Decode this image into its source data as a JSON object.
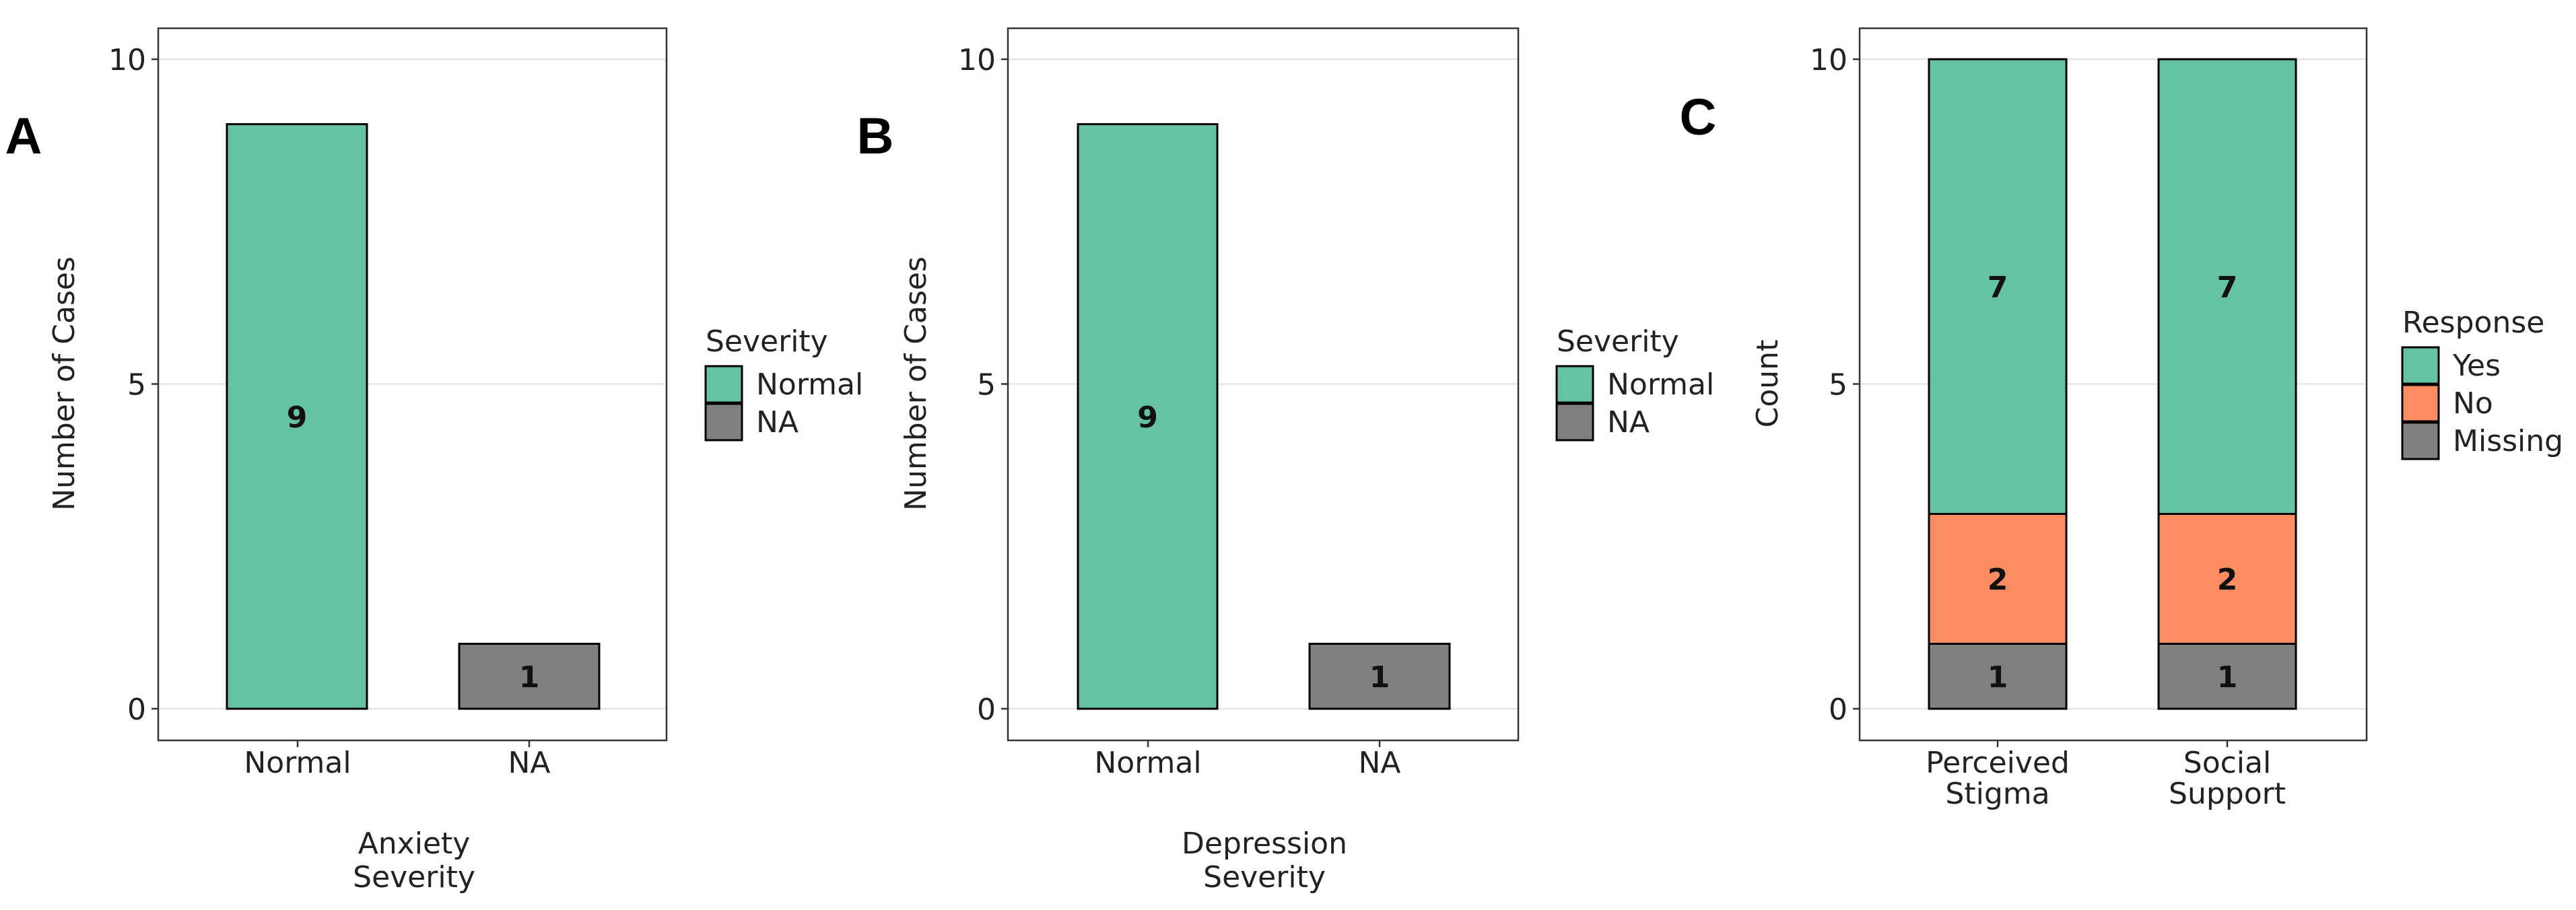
{
  "colors": {
    "Normal": "#66c2a5",
    "NA": "#808080",
    "Yes": "#66c2a5",
    "No": "#fc8d62",
    "Missing": "#808080",
    "grid": "#e6e6e6",
    "panel_border": "#333333",
    "bar_stroke": "#000000"
  },
  "chart_data": [
    {
      "panel": "A",
      "type": "bar",
      "categories": [
        "Normal",
        "NA"
      ],
      "series": [
        {
          "name": "Normal",
          "values": [
            9,
            0
          ]
        },
        {
          "name": "NA",
          "values": [
            0,
            1
          ]
        }
      ],
      "data_labels": [
        "9",
        "1"
      ],
      "title": "",
      "xlabel": [
        "Anxiety",
        "Severity"
      ],
      "ylabel": "Number of Cases",
      "ylim": [
        0,
        10
      ],
      "yticks": [
        0,
        5,
        10
      ],
      "grid": true,
      "legend": {
        "title": "Severity",
        "entries": [
          "Normal",
          "NA"
        ],
        "position": "right"
      }
    },
    {
      "panel": "B",
      "type": "bar",
      "categories": [
        "Normal",
        "NA"
      ],
      "series": [
        {
          "name": "Normal",
          "values": [
            9,
            0
          ]
        },
        {
          "name": "NA",
          "values": [
            0,
            1
          ]
        }
      ],
      "data_labels": [
        "9",
        "1"
      ],
      "title": "",
      "xlabel": [
        "Depression",
        "Severity"
      ],
      "ylabel": "Number of Cases",
      "ylim": [
        0,
        10
      ],
      "yticks": [
        0,
        5,
        10
      ],
      "grid": true,
      "legend": {
        "title": "Severity",
        "entries": [
          "Normal",
          "NA"
        ],
        "position": "right"
      }
    },
    {
      "panel": "C",
      "type": "bar",
      "stacked": true,
      "categories": [
        [
          "Perceived",
          "Stigma"
        ],
        [
          "Social",
          "Support"
        ]
      ],
      "series": [
        {
          "name": "Missing",
          "values": [
            1,
            1
          ]
        },
        {
          "name": "No",
          "values": [
            2,
            2
          ]
        },
        {
          "name": "Yes",
          "values": [
            7,
            7
          ]
        }
      ],
      "title": "",
      "xlabel": "",
      "ylabel": "Count",
      "ylim": [
        0,
        10
      ],
      "yticks": [
        0,
        5,
        10
      ],
      "grid": true,
      "legend": {
        "title": "Response",
        "entries": [
          "Yes",
          "No",
          "Missing"
        ],
        "position": "right"
      }
    }
  ]
}
